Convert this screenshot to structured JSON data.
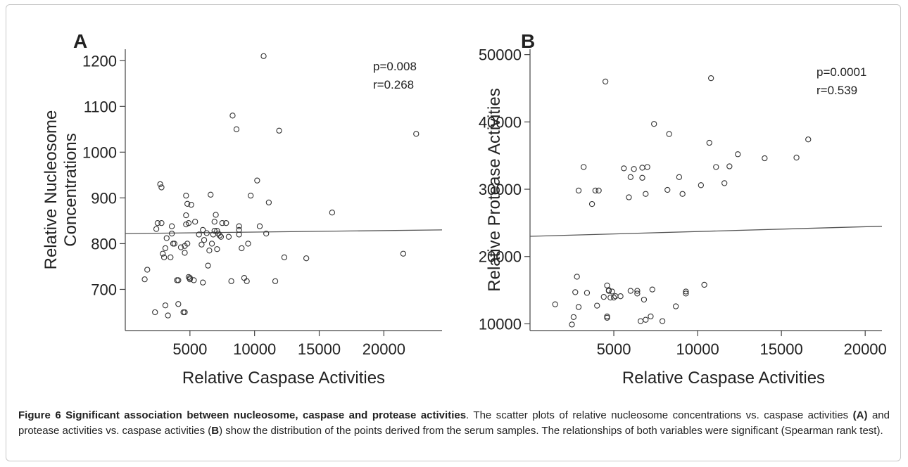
{
  "chart_data": [
    {
      "type": "scatter",
      "panel": "A",
      "xlabel": "Relative Caspase Activities",
      "ylabel": [
        "Relative Nucleosome",
        "Concentrations"
      ],
      "xlim": [
        0,
        24500
      ],
      "ylim": [
        610,
        1225
      ],
      "xticks": [
        5000,
        10000,
        15000,
        20000
      ],
      "yticks": [
        700,
        800,
        900,
        1000,
        1100,
        1200
      ],
      "annotations": [
        "p=0.008",
        "r=0.268"
      ],
      "trend_line": {
        "x": [
          0,
          24500
        ],
        "y": [
          822,
          830
        ]
      },
      "points": [
        [
          1500,
          722
        ],
        [
          1700,
          743
        ],
        [
          2300,
          650
        ],
        [
          2400,
          832
        ],
        [
          2500,
          845
        ],
        [
          2700,
          930
        ],
        [
          2800,
          845
        ],
        [
          2800,
          923
        ],
        [
          2900,
          778
        ],
        [
          3000,
          770
        ],
        [
          3100,
          665
        ],
        [
          3100,
          790
        ],
        [
          3200,
          812
        ],
        [
          3300,
          643
        ],
        [
          3500,
          770
        ],
        [
          3600,
          822
        ],
        [
          3600,
          838
        ],
        [
          3700,
          800
        ],
        [
          3800,
          800
        ],
        [
          4000,
          720
        ],
        [
          4100,
          720
        ],
        [
          4100,
          668
        ],
        [
          4300,
          792
        ],
        [
          4500,
          650
        ],
        [
          4600,
          650
        ],
        [
          4600,
          780
        ],
        [
          4600,
          795
        ],
        [
          4700,
          842
        ],
        [
          4700,
          862
        ],
        [
          4700,
          905
        ],
        [
          4800,
          887
        ],
        [
          4800,
          800
        ],
        [
          4900,
          845
        ],
        [
          4900,
          727
        ],
        [
          5000,
          722
        ],
        [
          5000,
          725
        ],
        [
          5100,
          885
        ],
        [
          5300,
          720
        ],
        [
          5400,
          848
        ],
        [
          5700,
          820
        ],
        [
          5900,
          798
        ],
        [
          6000,
          715
        ],
        [
          6000,
          830
        ],
        [
          6100,
          808
        ],
        [
          6300,
          823
        ],
        [
          6400,
          752
        ],
        [
          6500,
          785
        ],
        [
          6600,
          907
        ],
        [
          6700,
          800
        ],
        [
          6800,
          820
        ],
        [
          6900,
          848
        ],
        [
          6900,
          828
        ],
        [
          7000,
          863
        ],
        [
          7100,
          828
        ],
        [
          7100,
          788
        ],
        [
          7200,
          822
        ],
        [
          7300,
          818
        ],
        [
          7400,
          815
        ],
        [
          7500,
          845
        ],
        [
          7800,
          845
        ],
        [
          8000,
          815
        ],
        [
          8200,
          718
        ],
        [
          8300,
          1080
        ],
        [
          8600,
          1050
        ],
        [
          8800,
          838
        ],
        [
          8800,
          830
        ],
        [
          8800,
          820
        ],
        [
          9000,
          790
        ],
        [
          9200,
          725
        ],
        [
          9400,
          718
        ],
        [
          9500,
          800
        ],
        [
          9700,
          905
        ],
        [
          10200,
          938
        ],
        [
          10400,
          838
        ],
        [
          10700,
          1210
        ],
        [
          10900,
          822
        ],
        [
          11100,
          890
        ],
        [
          11600,
          718
        ],
        [
          11900,
          1047
        ],
        [
          12300,
          770
        ],
        [
          14000,
          768
        ],
        [
          16000,
          868
        ],
        [
          21500,
          778
        ],
        [
          22500,
          1040
        ]
      ]
    },
    {
      "type": "scatter",
      "panel": "B",
      "xlabel": "Relative Caspase Activities",
      "ylabel": [
        "Relative Protease Activities"
      ],
      "xlim": [
        0,
        21000
      ],
      "ylim": [
        9000,
        50800
      ],
      "xticks": [
        5000,
        10000,
        15000,
        20000
      ],
      "yticks": [
        10000,
        20000,
        30000,
        40000,
        50000
      ],
      "annotations": [
        "p=0.0001",
        "r=0.539"
      ],
      "trend_line": {
        "x": [
          0,
          21000
        ],
        "y": [
          23000,
          24500
        ]
      },
      "points": [
        [
          1500,
          12900
        ],
        [
          2500,
          9900
        ],
        [
          2600,
          11000
        ],
        [
          2700,
          14700
        ],
        [
          2800,
          17000
        ],
        [
          2900,
          12500
        ],
        [
          2900,
          29800
        ],
        [
          3200,
          33300
        ],
        [
          3400,
          14600
        ],
        [
          3700,
          27800
        ],
        [
          3900,
          29800
        ],
        [
          4000,
          12700
        ],
        [
          4100,
          29800
        ],
        [
          4400,
          14000
        ],
        [
          4500,
          46000
        ],
        [
          4600,
          15700
        ],
        [
          4600,
          11100
        ],
        [
          4600,
          10900
        ],
        [
          4700,
          14900
        ],
        [
          4700,
          15000
        ],
        [
          4800,
          13900
        ],
        [
          4900,
          14800
        ],
        [
          5000,
          13900
        ],
        [
          5100,
          14100
        ],
        [
          5400,
          14100
        ],
        [
          5600,
          33100
        ],
        [
          5900,
          28800
        ],
        [
          6000,
          31800
        ],
        [
          6000,
          14900
        ],
        [
          6200,
          33000
        ],
        [
          6400,
          14900
        ],
        [
          6400,
          14500
        ],
        [
          6600,
          10400
        ],
        [
          6700,
          31700
        ],
        [
          6700,
          33200
        ],
        [
          6800,
          13600
        ],
        [
          6900,
          10600
        ],
        [
          6900,
          29300
        ],
        [
          7000,
          33300
        ],
        [
          7200,
          11100
        ],
        [
          7300,
          15100
        ],
        [
          7400,
          39700
        ],
        [
          7900,
          10400
        ],
        [
          8200,
          29900
        ],
        [
          8300,
          38200
        ],
        [
          8700,
          12600
        ],
        [
          8900,
          31800
        ],
        [
          9100,
          29300
        ],
        [
          9300,
          14500
        ],
        [
          9300,
          14800
        ],
        [
          10200,
          30600
        ],
        [
          10400,
          15800
        ],
        [
          10700,
          36900
        ],
        [
          10800,
          46500
        ],
        [
          11100,
          33300
        ],
        [
          11600,
          30900
        ],
        [
          11900,
          33400
        ],
        [
          12400,
          35200
        ],
        [
          14000,
          34600
        ],
        [
          15900,
          34700
        ],
        [
          16600,
          37400
        ]
      ]
    }
  ],
  "caption": {
    "figure_label": "Figure 6",
    "title": "Significant association between nucleosome, caspase and protease activities",
    "text_1": ". The scatter plots of relative nucleosome concentrations vs. caspase activities ",
    "ref_a": "(A)",
    "text_2": " and protease activities vs. caspase activities (",
    "ref_b": "B",
    "text_3": ") show the distribution of the points derived from the serum samples. The relationships of both variables were significant (Spearman rank test)."
  },
  "colors": {
    "marker": "#333333",
    "axis": "#444444",
    "trend": "#555555",
    "frame": "#c8c8c8"
  }
}
